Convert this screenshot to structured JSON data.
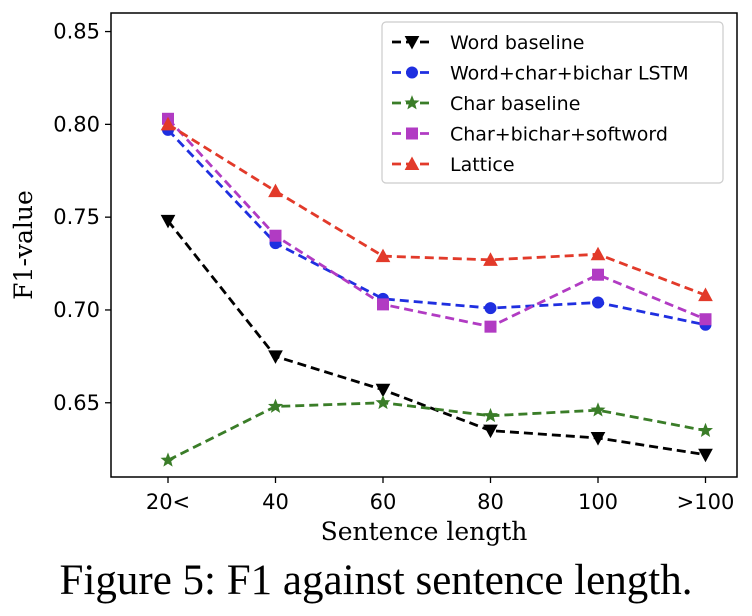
{
  "caption": "Figure 5: F1 against sentence length.",
  "chart_data": {
    "type": "line",
    "xlabel": "Sentence length",
    "ylabel": "F1-value",
    "categories": [
      "20<",
      "40",
      "60",
      "80",
      "100",
      ">100"
    ],
    "ylim": [
      0.61,
      0.86
    ],
    "yticks": [
      "0.65",
      "0.70",
      "0.75",
      "0.80",
      "0.85"
    ],
    "grid": false,
    "legend_position": "top-right",
    "series": [
      {
        "name": "Word baseline",
        "color": "#000000",
        "marker": "triangle-down",
        "values": [
          0.748,
          0.675,
          0.657,
          0.635,
          0.631,
          0.622
        ]
      },
      {
        "name": "Word+char+bichar LSTM",
        "color": "#1f2fe0",
        "marker": "circle",
        "values": [
          0.797,
          0.736,
          0.706,
          0.701,
          0.704,
          0.692
        ]
      },
      {
        "name": "Char baseline",
        "color": "#3a7d28",
        "marker": "star",
        "values": [
          0.619,
          0.648,
          0.65,
          0.643,
          0.646,
          0.635
        ]
      },
      {
        "name": "Char+bichar+softword",
        "color": "#b13bc3",
        "marker": "square",
        "values": [
          0.803,
          0.74,
          0.703,
          0.691,
          0.719,
          0.695
        ]
      },
      {
        "name": "Lattice",
        "color": "#e23a2a",
        "marker": "triangle-up",
        "values": [
          0.8,
          0.764,
          0.729,
          0.727,
          0.73,
          0.708
        ]
      }
    ]
  }
}
